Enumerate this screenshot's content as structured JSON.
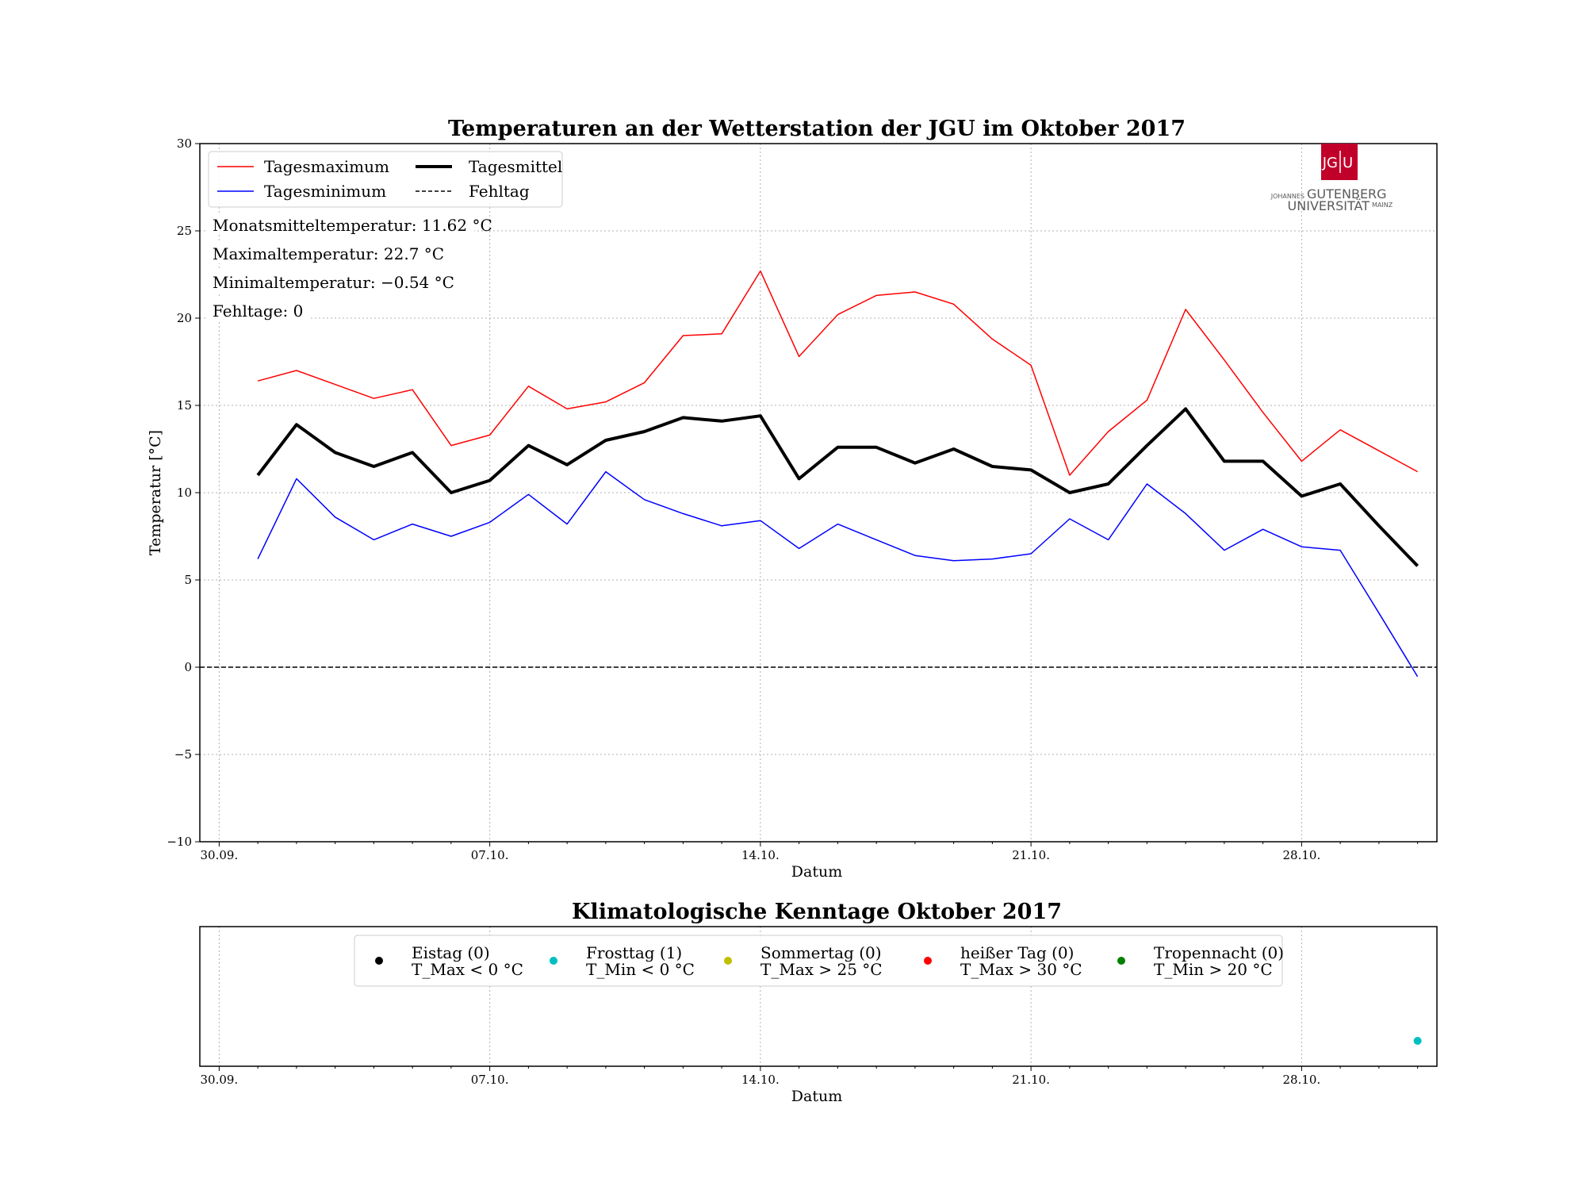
{
  "chart_data": [
    {
      "type": "line",
      "title": "Temperaturen an der Wetterstation der JGU im Oktober 2017",
      "xlabel": "Datum",
      "ylabel": "Temperatur [°C]",
      "ylim": [
        -10,
        30
      ],
      "yticks": [
        "−10",
        "−5",
        "0",
        "5",
        "10",
        "15",
        "20",
        "25",
        "30"
      ],
      "xlim": [
        -0.5,
        31.5
      ],
      "xticks": [
        {
          "day": 0,
          "label": "30.09."
        },
        {
          "day": 7,
          "label": "07.10."
        },
        {
          "day": 14,
          "label": "14.10."
        },
        {
          "day": 21,
          "label": "21.10."
        },
        {
          "day": 28,
          "label": "28.10."
        }
      ],
      "x": [
        1,
        2,
        3,
        4,
        5,
        6,
        7,
        8,
        9,
        10,
        11,
        12,
        13,
        14,
        15,
        16,
        17,
        18,
        19,
        20,
        21,
        22,
        23,
        24,
        25,
        26,
        27,
        28,
        29,
        30,
        31
      ],
      "series": [
        {
          "name": "Tagesmaximum",
          "color": "#ff0000",
          "width": 1.5,
          "values": [
            16.4,
            17.0,
            16.2,
            15.4,
            15.9,
            12.7,
            13.3,
            16.1,
            14.8,
            15.2,
            16.3,
            19.0,
            19.1,
            22.7,
            17.8,
            20.2,
            21.3,
            21.5,
            20.8,
            18.8,
            17.3,
            11.0,
            13.5,
            15.3,
            20.5,
            17.6,
            14.6,
            11.8,
            13.6,
            12.4,
            11.2
          ]
        },
        {
          "name": "Tagesminimum",
          "color": "#0000ff",
          "width": 1.5,
          "values": [
            6.2,
            10.8,
            8.6,
            7.3,
            8.2,
            7.5,
            8.3,
            9.9,
            8.2,
            11.2,
            9.6,
            8.8,
            8.1,
            8.4,
            6.8,
            8.2,
            7.3,
            6.4,
            6.1,
            6.2,
            6.5,
            8.5,
            7.3,
            10.5,
            8.8,
            6.7,
            7.9,
            6.9,
            6.7,
            3.1,
            -0.54
          ]
        },
        {
          "name": "Tagesmittel",
          "color": "#000000",
          "width": 4,
          "values": [
            11.0,
            13.9,
            12.3,
            11.5,
            12.3,
            10.0,
            10.7,
            12.7,
            11.6,
            13.0,
            13.5,
            14.3,
            14.1,
            14.4,
            10.8,
            12.6,
            12.6,
            11.7,
            12.5,
            11.5,
            11.3,
            10.0,
            10.5,
            12.7,
            14.8,
            11.8,
            11.8,
            9.8,
            10.5,
            8.1,
            5.8
          ]
        }
      ],
      "reference_line": {
        "name": "Fehltag",
        "y": 0,
        "style": "dashed"
      },
      "legend": {
        "position": "upper-left",
        "entries": [
          "Tagesmaximum",
          "Tagesmittel",
          "Tagesminimum",
          "Fehltag"
        ]
      },
      "annotations": [
        "Monatsmitteltemperatur:  11.62 °C",
        "Maximaltemperatur:  22.7 °C",
        "Minimaltemperatur:  −0.54 °C",
        "Fehltage:  0"
      ],
      "grid": true
    },
    {
      "type": "scatter",
      "title": "Klimatologische Kenntage Oktober 2017",
      "xlabel": "Datum",
      "xlim": [
        -0.5,
        31.5
      ],
      "xticks": [
        {
          "day": 0,
          "label": "30.09."
        },
        {
          "day": 7,
          "label": "07.10."
        },
        {
          "day": 14,
          "label": "14.10."
        },
        {
          "day": 21,
          "label": "21.10."
        },
        {
          "day": 28,
          "label": "28.10."
        }
      ],
      "categories": [
        {
          "name": "Eistag (0)",
          "condition": "T_Max < 0 °C",
          "color": "#000000",
          "days": []
        },
        {
          "name": "Frosttag (1)",
          "condition": "T_Min < 0 °C",
          "color": "#00bfbf",
          "days": [
            31
          ]
        },
        {
          "name": "Sommertag (0)",
          "condition": "T_Max > 25 °C",
          "color": "#bfbf00",
          "days": []
        },
        {
          "name": "heißer Tag (0)",
          "condition": "T_Max > 30 °C",
          "color": "#ff0000",
          "days": []
        },
        {
          "name": "Tropennacht (0)",
          "condition": "T_Min > 20 °C",
          "color": "#008000",
          "days": []
        }
      ],
      "legend": {
        "position": "top-center"
      },
      "grid": true
    }
  ],
  "logo": {
    "monogram_left": "JG",
    "monogram_right": "U",
    "line1_small": "JOHANNES",
    "line1_big": "GUTENBERG",
    "line2_big": "UNIVERSITÄT",
    "line2_small": "MAINZ",
    "color": "#c1002a"
  }
}
